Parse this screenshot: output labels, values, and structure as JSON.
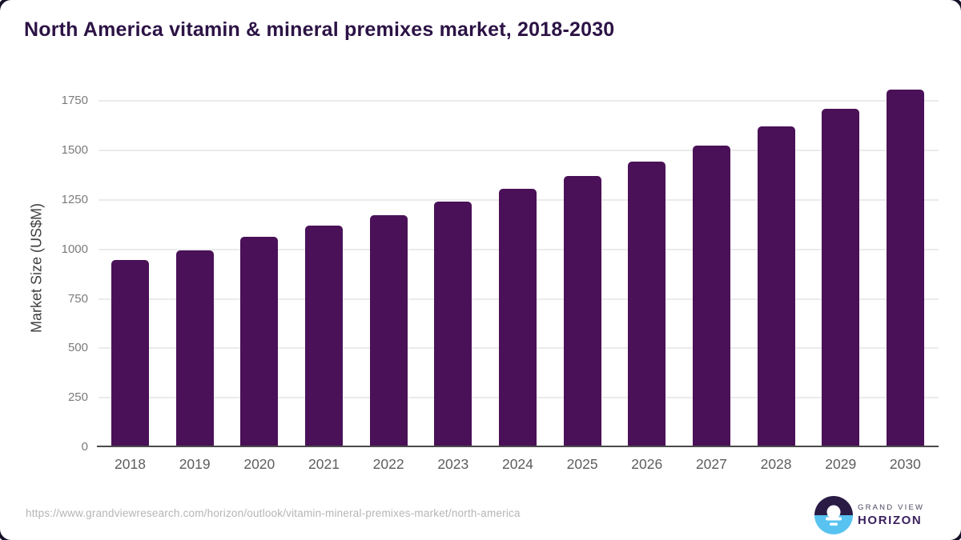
{
  "header": {
    "title": "North America vitamin & mineral premixes market, 2018-2030"
  },
  "chart_data": {
    "type": "bar",
    "title": "North America vitamin & mineral premixes market, 2018-2030",
    "categories": [
      "2018",
      "2019",
      "2020",
      "2021",
      "2022",
      "2023",
      "2024",
      "2025",
      "2026",
      "2027",
      "2028",
      "2029",
      "2030"
    ],
    "values": [
      945,
      995,
      1065,
      1120,
      1175,
      1240,
      1305,
      1370,
      1445,
      1525,
      1620,
      1710,
      1810
    ],
    "xlabel": "",
    "ylabel": "Market Size (US$M)",
    "yticks": [
      0,
      250,
      500,
      750,
      1000,
      1250,
      1500,
      1750
    ],
    "ylim": [
      0,
      1812
    ],
    "grid": true,
    "legend": "none",
    "bar_color": "#4a1158"
  },
  "footer": {
    "url": "https://www.grandviewresearch.com/horizon/outlook/vitamin-mineral-premixes-market/north-america",
    "logo": {
      "line1": "GRAND VIEW",
      "line2": "HORIZON"
    }
  },
  "colors": {
    "title_text": "#2c1345",
    "bar": "#4a1158",
    "gridline": "#ebebeb",
    "axis_line": "#4a4a4a",
    "tick_text": "#7b7b7b",
    "x_label_text": "#5d5d5d",
    "url_text": "#b5b5b5",
    "logo_dark": "#2a1b45",
    "logo_blue": "#58c3f0"
  }
}
